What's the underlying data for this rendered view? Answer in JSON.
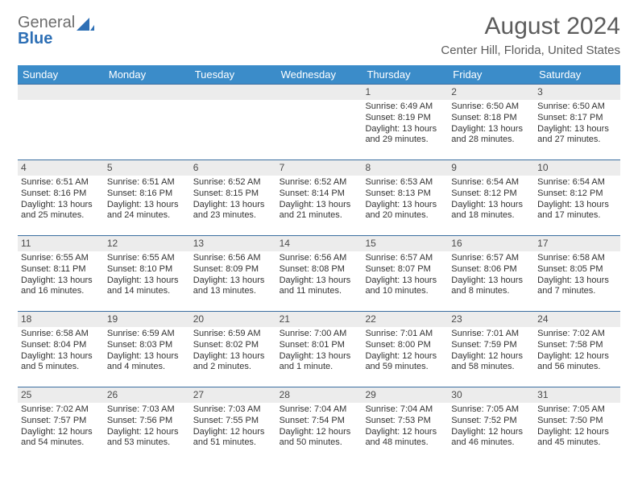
{
  "logo": {
    "text_gray": "General",
    "text_blue": "Blue"
  },
  "title": "August 2024",
  "location": "Center Hill, Florida, United States",
  "day_headers": [
    "Sunday",
    "Monday",
    "Tuesday",
    "Wednesday",
    "Thursday",
    "Friday",
    "Saturday"
  ],
  "colors": {
    "header_bg": "#3b8cc9",
    "week_border": "#3b6ea0",
    "daynum_bg": "#ececec",
    "logo_gray": "#6d6d6d",
    "logo_blue": "#2d6fb5"
  },
  "weeks": [
    [
      {
        "empty": true
      },
      {
        "empty": true
      },
      {
        "empty": true
      },
      {
        "empty": true
      },
      {
        "day": "1",
        "sunrise": "Sunrise: 6:49 AM",
        "sunset": "Sunset: 8:19 PM",
        "daylight1": "Daylight: 13 hours",
        "daylight2": "and 29 minutes."
      },
      {
        "day": "2",
        "sunrise": "Sunrise: 6:50 AM",
        "sunset": "Sunset: 8:18 PM",
        "daylight1": "Daylight: 13 hours",
        "daylight2": "and 28 minutes."
      },
      {
        "day": "3",
        "sunrise": "Sunrise: 6:50 AM",
        "sunset": "Sunset: 8:17 PM",
        "daylight1": "Daylight: 13 hours",
        "daylight2": "and 27 minutes."
      }
    ],
    [
      {
        "day": "4",
        "sunrise": "Sunrise: 6:51 AM",
        "sunset": "Sunset: 8:16 PM",
        "daylight1": "Daylight: 13 hours",
        "daylight2": "and 25 minutes."
      },
      {
        "day": "5",
        "sunrise": "Sunrise: 6:51 AM",
        "sunset": "Sunset: 8:16 PM",
        "daylight1": "Daylight: 13 hours",
        "daylight2": "and 24 minutes."
      },
      {
        "day": "6",
        "sunrise": "Sunrise: 6:52 AM",
        "sunset": "Sunset: 8:15 PM",
        "daylight1": "Daylight: 13 hours",
        "daylight2": "and 23 minutes."
      },
      {
        "day": "7",
        "sunrise": "Sunrise: 6:52 AM",
        "sunset": "Sunset: 8:14 PM",
        "daylight1": "Daylight: 13 hours",
        "daylight2": "and 21 minutes."
      },
      {
        "day": "8",
        "sunrise": "Sunrise: 6:53 AM",
        "sunset": "Sunset: 8:13 PM",
        "daylight1": "Daylight: 13 hours",
        "daylight2": "and 20 minutes."
      },
      {
        "day": "9",
        "sunrise": "Sunrise: 6:54 AM",
        "sunset": "Sunset: 8:12 PM",
        "daylight1": "Daylight: 13 hours",
        "daylight2": "and 18 minutes."
      },
      {
        "day": "10",
        "sunrise": "Sunrise: 6:54 AM",
        "sunset": "Sunset: 8:12 PM",
        "daylight1": "Daylight: 13 hours",
        "daylight2": "and 17 minutes."
      }
    ],
    [
      {
        "day": "11",
        "sunrise": "Sunrise: 6:55 AM",
        "sunset": "Sunset: 8:11 PM",
        "daylight1": "Daylight: 13 hours",
        "daylight2": "and 16 minutes."
      },
      {
        "day": "12",
        "sunrise": "Sunrise: 6:55 AM",
        "sunset": "Sunset: 8:10 PM",
        "daylight1": "Daylight: 13 hours",
        "daylight2": "and 14 minutes."
      },
      {
        "day": "13",
        "sunrise": "Sunrise: 6:56 AM",
        "sunset": "Sunset: 8:09 PM",
        "daylight1": "Daylight: 13 hours",
        "daylight2": "and 13 minutes."
      },
      {
        "day": "14",
        "sunrise": "Sunrise: 6:56 AM",
        "sunset": "Sunset: 8:08 PM",
        "daylight1": "Daylight: 13 hours",
        "daylight2": "and 11 minutes."
      },
      {
        "day": "15",
        "sunrise": "Sunrise: 6:57 AM",
        "sunset": "Sunset: 8:07 PM",
        "daylight1": "Daylight: 13 hours",
        "daylight2": "and 10 minutes."
      },
      {
        "day": "16",
        "sunrise": "Sunrise: 6:57 AM",
        "sunset": "Sunset: 8:06 PM",
        "daylight1": "Daylight: 13 hours",
        "daylight2": "and 8 minutes."
      },
      {
        "day": "17",
        "sunrise": "Sunrise: 6:58 AM",
        "sunset": "Sunset: 8:05 PM",
        "daylight1": "Daylight: 13 hours",
        "daylight2": "and 7 minutes."
      }
    ],
    [
      {
        "day": "18",
        "sunrise": "Sunrise: 6:58 AM",
        "sunset": "Sunset: 8:04 PM",
        "daylight1": "Daylight: 13 hours",
        "daylight2": "and 5 minutes."
      },
      {
        "day": "19",
        "sunrise": "Sunrise: 6:59 AM",
        "sunset": "Sunset: 8:03 PM",
        "daylight1": "Daylight: 13 hours",
        "daylight2": "and 4 minutes."
      },
      {
        "day": "20",
        "sunrise": "Sunrise: 6:59 AM",
        "sunset": "Sunset: 8:02 PM",
        "daylight1": "Daylight: 13 hours",
        "daylight2": "and 2 minutes."
      },
      {
        "day": "21",
        "sunrise": "Sunrise: 7:00 AM",
        "sunset": "Sunset: 8:01 PM",
        "daylight1": "Daylight: 13 hours",
        "daylight2": "and 1 minute."
      },
      {
        "day": "22",
        "sunrise": "Sunrise: 7:01 AM",
        "sunset": "Sunset: 8:00 PM",
        "daylight1": "Daylight: 12 hours",
        "daylight2": "and 59 minutes."
      },
      {
        "day": "23",
        "sunrise": "Sunrise: 7:01 AM",
        "sunset": "Sunset: 7:59 PM",
        "daylight1": "Daylight: 12 hours",
        "daylight2": "and 58 minutes."
      },
      {
        "day": "24",
        "sunrise": "Sunrise: 7:02 AM",
        "sunset": "Sunset: 7:58 PM",
        "daylight1": "Daylight: 12 hours",
        "daylight2": "and 56 minutes."
      }
    ],
    [
      {
        "day": "25",
        "sunrise": "Sunrise: 7:02 AM",
        "sunset": "Sunset: 7:57 PM",
        "daylight1": "Daylight: 12 hours",
        "daylight2": "and 54 minutes."
      },
      {
        "day": "26",
        "sunrise": "Sunrise: 7:03 AM",
        "sunset": "Sunset: 7:56 PM",
        "daylight1": "Daylight: 12 hours",
        "daylight2": "and 53 minutes."
      },
      {
        "day": "27",
        "sunrise": "Sunrise: 7:03 AM",
        "sunset": "Sunset: 7:55 PM",
        "daylight1": "Daylight: 12 hours",
        "daylight2": "and 51 minutes."
      },
      {
        "day": "28",
        "sunrise": "Sunrise: 7:04 AM",
        "sunset": "Sunset: 7:54 PM",
        "daylight1": "Daylight: 12 hours",
        "daylight2": "and 50 minutes."
      },
      {
        "day": "29",
        "sunrise": "Sunrise: 7:04 AM",
        "sunset": "Sunset: 7:53 PM",
        "daylight1": "Daylight: 12 hours",
        "daylight2": "and 48 minutes."
      },
      {
        "day": "30",
        "sunrise": "Sunrise: 7:05 AM",
        "sunset": "Sunset: 7:52 PM",
        "daylight1": "Daylight: 12 hours",
        "daylight2": "and 46 minutes."
      },
      {
        "day": "31",
        "sunrise": "Sunrise: 7:05 AM",
        "sunset": "Sunset: 7:50 PM",
        "daylight1": "Daylight: 12 hours",
        "daylight2": "and 45 minutes."
      }
    ]
  ]
}
